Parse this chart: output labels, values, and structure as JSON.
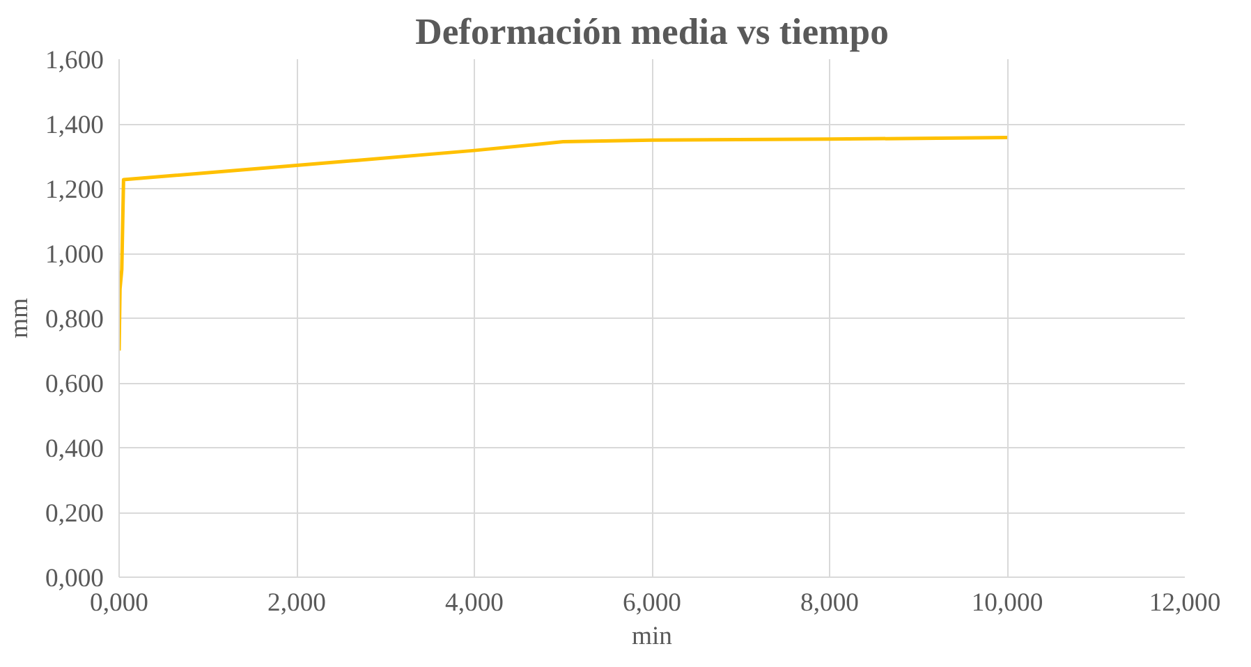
{
  "chart_data": {
    "type": "line",
    "title": "Deformación media vs tiempo",
    "xlabel": "min",
    "ylabel": "mm",
    "x": [
      0,
      0.01,
      0.03,
      0.05,
      2,
      4,
      5,
      6,
      8,
      10
    ],
    "series": [
      {
        "color": "#ffc000",
        "values": [
          0.7,
          0.89,
          0.95,
          1.228,
          1.272,
          1.318,
          1.345,
          1.35,
          1.353,
          1.358
        ]
      }
    ],
    "xlim": [
      0,
      12
    ],
    "ylim": [
      0,
      1.6
    ],
    "xticks": [
      {
        "value": 0,
        "label": "0,000"
      },
      {
        "value": 2,
        "label": "2,000"
      },
      {
        "value": 4,
        "label": "4,000"
      },
      {
        "value": 6,
        "label": "6,000"
      },
      {
        "value": 8,
        "label": "8,000"
      },
      {
        "value": 10,
        "label": "10,000"
      },
      {
        "value": 12,
        "label": "12,000"
      }
    ],
    "yticks": [
      {
        "value": 0,
        "label": "0,000"
      },
      {
        "value": 0.2,
        "label": "0,200"
      },
      {
        "value": 0.4,
        "label": "0,400"
      },
      {
        "value": 0.6,
        "label": "0,600"
      },
      {
        "value": 0.8,
        "label": "0,800"
      },
      {
        "value": 1.0,
        "label": "1,000"
      },
      {
        "value": 1.2,
        "label": "1,200"
      },
      {
        "value": 1.4,
        "label": "1,400"
      },
      {
        "value": 1.6,
        "label": "1,600"
      }
    ],
    "grid": true,
    "marker": "none",
    "line_style": "solid"
  }
}
